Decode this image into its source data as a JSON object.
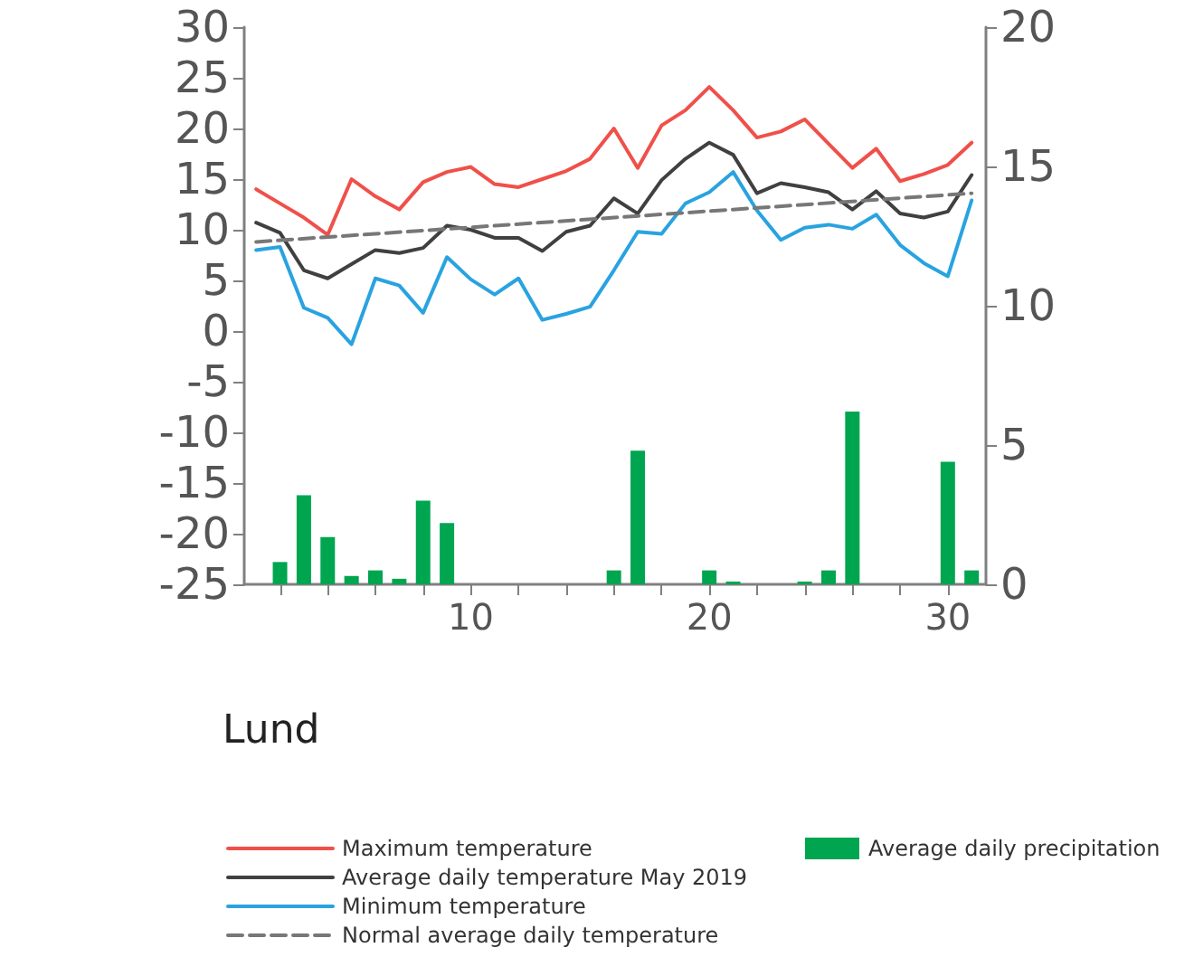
{
  "chart_data": {
    "type": "line",
    "title": "Lund",
    "x": [
      1,
      2,
      3,
      4,
      5,
      6,
      7,
      8,
      9,
      10,
      11,
      12,
      13,
      14,
      15,
      16,
      17,
      18,
      19,
      20,
      21,
      22,
      23,
      24,
      25,
      26,
      27,
      28,
      29,
      30,
      31
    ],
    "series": [
      {
        "name": "Maximum temperature",
        "color": "#f0504a",
        "values": [
          14.0,
          12.6,
          11.2,
          9.5,
          15.0,
          13.3,
          12.0,
          14.7,
          15.7,
          16.2,
          14.5,
          14.2,
          15.0,
          15.8,
          17.0,
          20.0,
          16.1,
          20.3,
          21.8,
          24.1,
          21.8,
          19.1,
          19.7,
          20.9,
          18.5,
          16.1,
          18.0,
          14.8,
          15.5,
          16.4,
          18.6
        ]
      },
      {
        "name": "Average daily temperature May 2019",
        "color": "#404040",
        "values": [
          10.7,
          9.7,
          6.0,
          5.2,
          6.6,
          8.0,
          7.7,
          8.2,
          10.4,
          10.0,
          9.2,
          9.2,
          7.9,
          9.8,
          10.4,
          13.1,
          11.6,
          14.9,
          17.0,
          18.6,
          17.4,
          13.6,
          14.6,
          14.2,
          13.7,
          12.0,
          13.8,
          11.6,
          11.2,
          11.8,
          15.4
        ]
      },
      {
        "name": "Minimum temperature",
        "color": "#29a3e0",
        "values": [
          8.0,
          8.3,
          2.3,
          1.3,
          -1.3,
          5.2,
          4.5,
          1.8,
          7.3,
          5.1,
          3.6,
          5.2,
          1.1,
          1.7,
          2.4,
          6.0,
          9.8,
          9.6,
          12.6,
          13.7,
          15.7,
          11.9,
          9.0,
          10.2,
          10.5,
          10.1,
          11.5,
          8.5,
          6.7,
          5.4,
          12.9
        ]
      },
      {
        "name": "Normal average daily temperature",
        "color": "#777777",
        "line_style": "dashed",
        "x": [
          1,
          31
        ],
        "values": [
          8.8,
          13.6
        ]
      },
      {
        "name": "Average daily precipitation",
        "type": "bar",
        "axis": "y2",
        "color": "#00a550",
        "values": [
          null,
          0.8,
          3.2,
          1.7,
          0.3,
          0.5,
          0.2,
          3.0,
          2.2,
          null,
          null,
          null,
          null,
          null,
          null,
          0.5,
          4.8,
          null,
          null,
          0.5,
          0.1,
          null,
          null,
          0.1,
          0.5,
          6.2,
          null,
          null,
          null,
          4.4,
          0.5
        ]
      }
    ],
    "xlim": [
      0.5,
      31.6
    ],
    "xticks": [
      {
        "value": 2,
        "label": null
      },
      {
        "value": 4,
        "label": null
      },
      {
        "value": 6,
        "label": null
      },
      {
        "value": 8,
        "label": null
      },
      10,
      {
        "value": 12,
        "label": null
      },
      {
        "value": 14,
        "label": null
      },
      {
        "value": 16,
        "label": null
      },
      {
        "value": 18,
        "label": null
      },
      20,
      {
        "value": 22,
        "label": null
      },
      {
        "value": 24,
        "label": null
      },
      {
        "value": 26,
        "label": null
      },
      {
        "value": 28,
        "label": null
      },
      30
    ],
    "ylim": [
      -25,
      30
    ],
    "yticks": [
      -25,
      -20,
      -15,
      -10,
      -5,
      0,
      5,
      10,
      15,
      20,
      25,
      30
    ],
    "y2lim": [
      0,
      20
    ],
    "y2ticks": [
      0,
      5,
      10,
      15,
      20
    ],
    "grid": false,
    "legend": "bottom",
    "marker": "none",
    "line_style": "solid"
  }
}
